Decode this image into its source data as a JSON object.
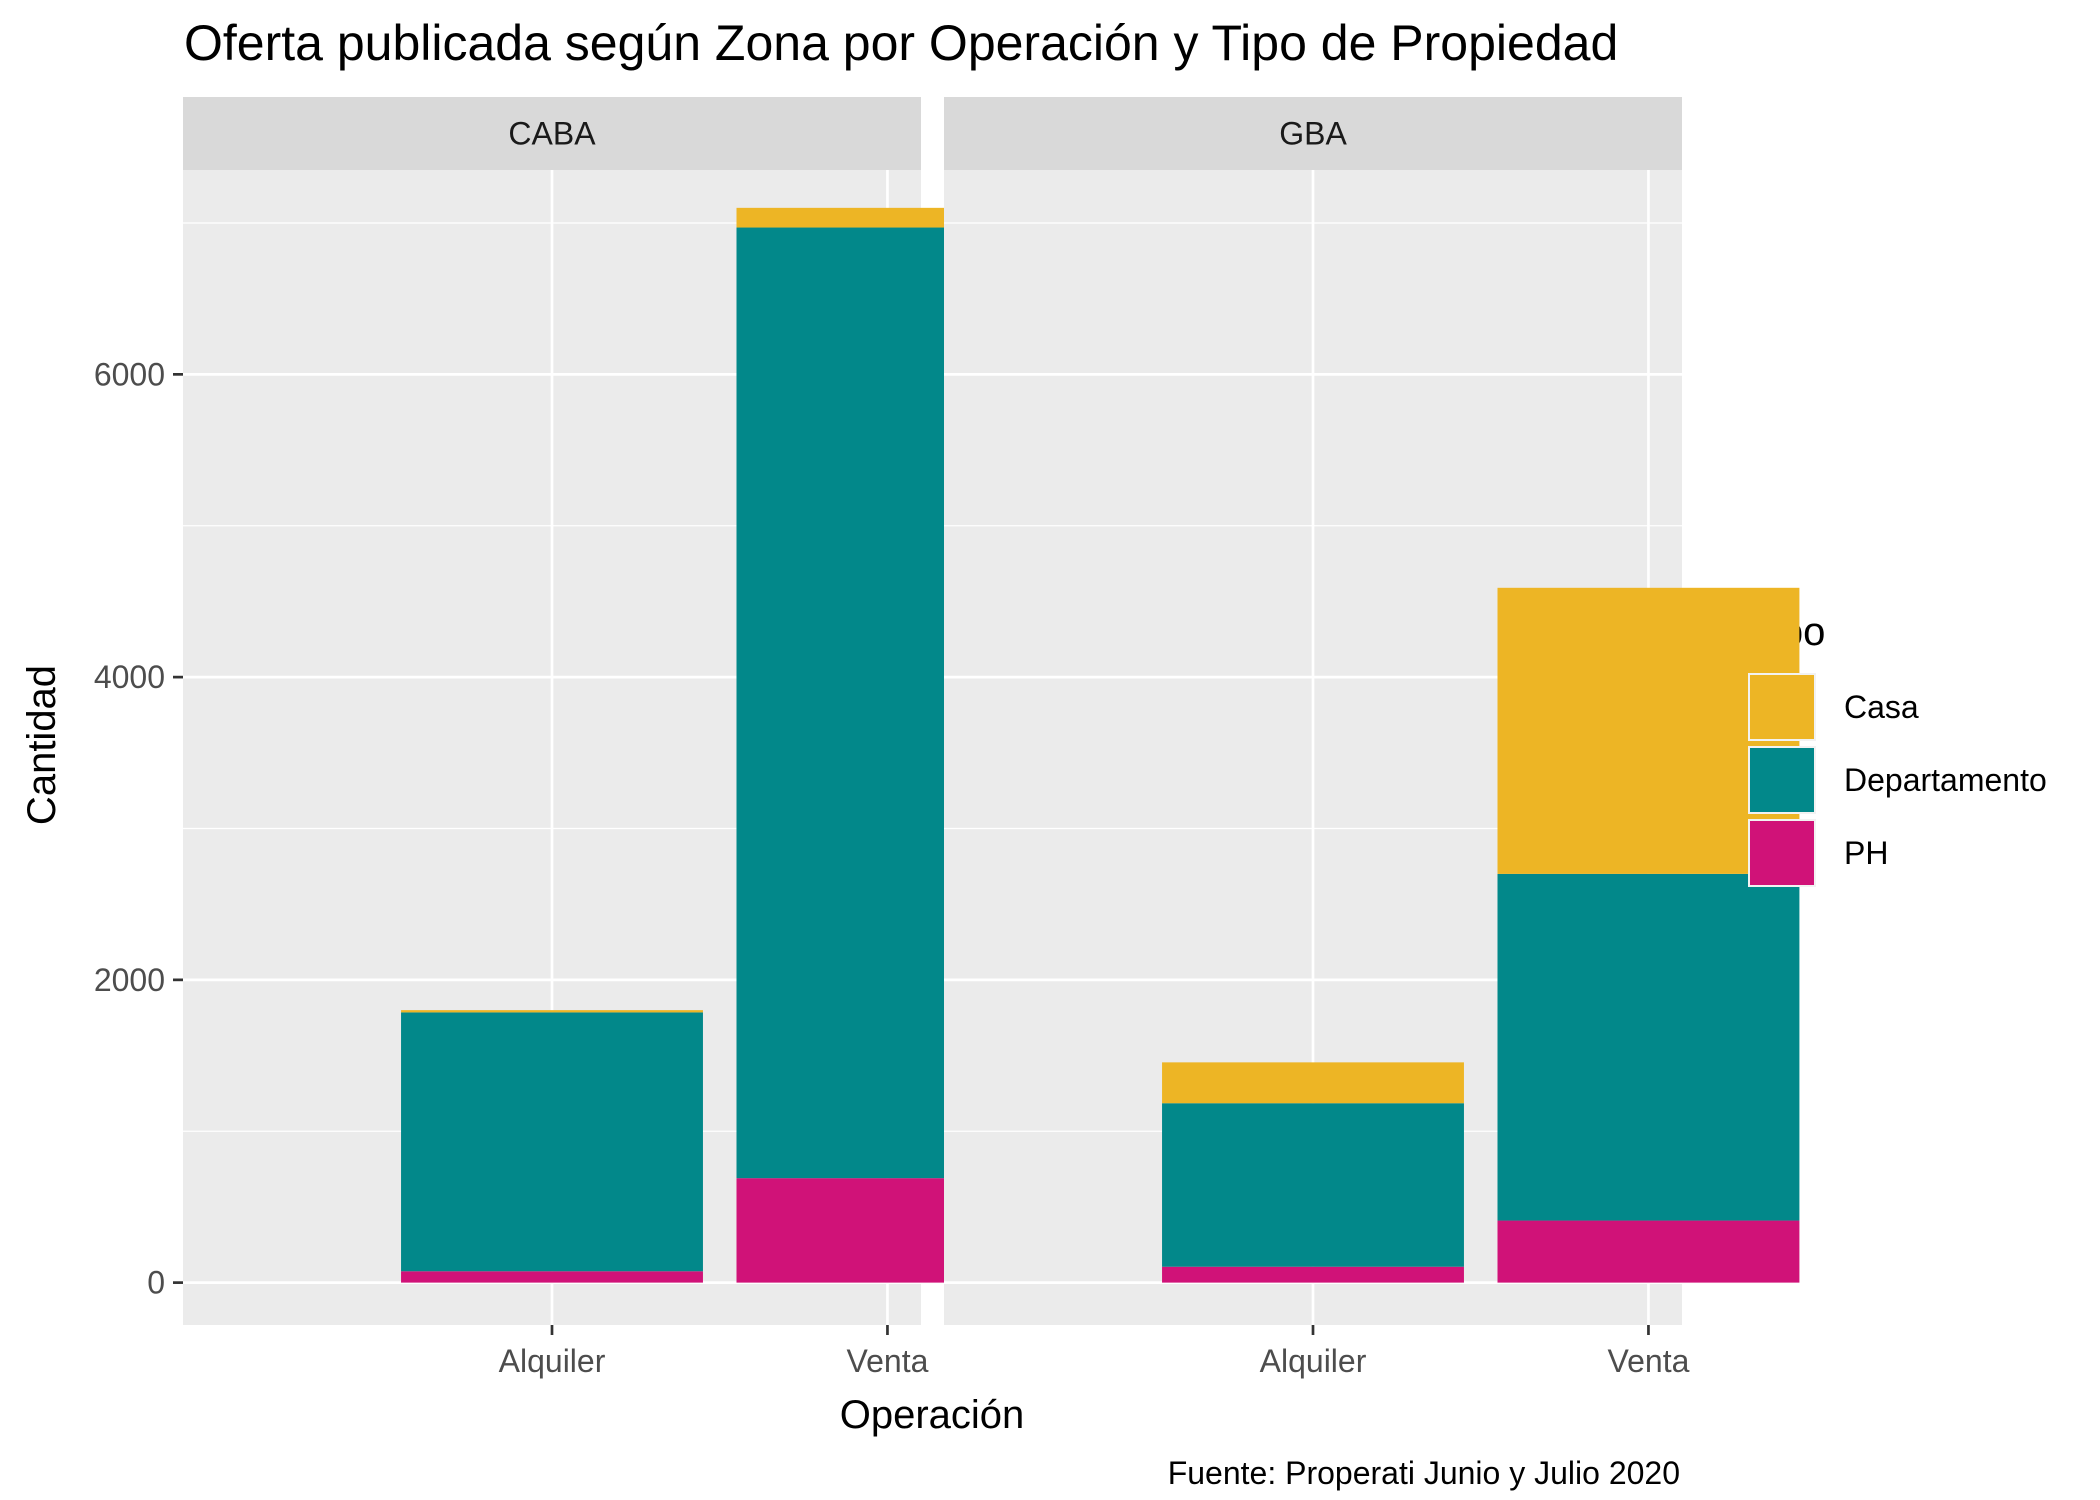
{
  "chart_data": {
    "type": "bar",
    "stacked": true,
    "faceted_by": "Zona",
    "title": "Oferta publicada según Zona por Operación y Tipo de Propiedad",
    "xlabel": "Operación",
    "ylabel": "Cantidad",
    "caption": "Fuente: Properati Junio y Julio 2020",
    "ylim": [
      -280,
      7350
    ],
    "yticks": [
      0,
      2000,
      4000,
      6000
    ],
    "y_tick_labels": [
      "0",
      "2000",
      "4000",
      "6000"
    ],
    "grid": true,
    "legend": {
      "title": "Tipo",
      "position": "right",
      "entries": [
        "Casa",
        "Departamento",
        "PH"
      ]
    },
    "colors": {
      "Casa": "#EDB525",
      "Departamento": "#02888A",
      "PH": "#D01278",
      "panel_background": "#EBEBEB",
      "strip_background": "#D9D9D9",
      "grid": "#FFFFFF"
    },
    "categories": [
      "Alquiler",
      "Venta"
    ],
    "stack_order_bottom_to_top": [
      "PH",
      "Departamento",
      "Casa"
    ],
    "panels": [
      {
        "name": "CABA",
        "series": [
          {
            "name": "Casa",
            "values": [
              15,
              130
            ]
          },
          {
            "name": "Departamento",
            "values": [
              1710,
              6280
            ]
          },
          {
            "name": "PH",
            "values": [
              75,
              690
            ]
          }
        ]
      },
      {
        "name": "GBA",
        "series": [
          {
            "name": "Casa",
            "values": [
              270,
              1890
            ]
          },
          {
            "name": "Departamento",
            "values": [
              1080,
              2290
            ]
          },
          {
            "name": "PH",
            "values": [
              105,
              410
            ]
          }
        ]
      }
    ]
  }
}
